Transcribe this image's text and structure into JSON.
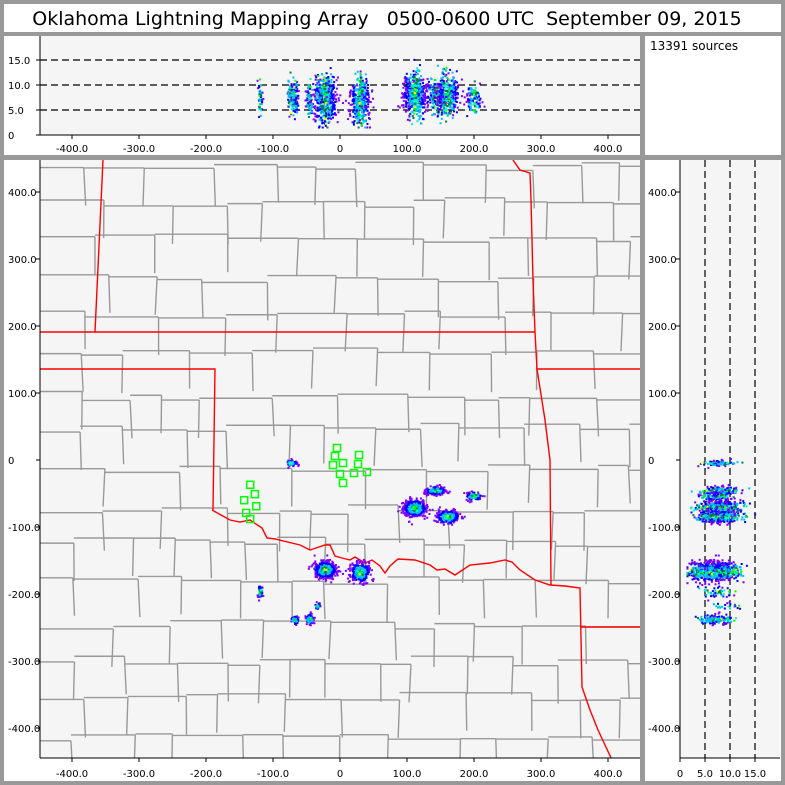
{
  "title": "Oklahoma Lightning Mapping Array   0500-0600 UTC  September 09, 2015",
  "sources_label": "13391 sources",
  "colors": {
    "background": "#999999",
    "plot_bg": "#f5f5f5",
    "state_border": "#ff0000",
    "county_border": "#999999",
    "station": "#00ff00",
    "density_scale": [
      "#8000ff",
      "#0000ff",
      "#00c0ff",
      "#00ffc0",
      "#00ff00",
      "#008040",
      "#ffff00",
      "#ff0000"
    ]
  },
  "chart_data": [
    {
      "panel": "altitude-vs-east-west",
      "type": "scatter",
      "xlim": [
        -450,
        450
      ],
      "ylim": [
        0,
        20
      ],
      "x_ticks": [
        "-400.0",
        "-300.0",
        "-200.0",
        "-100.0",
        "0",
        "100.0",
        "200.0",
        "300.0",
        "400.0"
      ],
      "x_tick_values": [
        -400,
        -300,
        -200,
        -100,
        0,
        100,
        200,
        300,
        400
      ],
      "y_ticks": [
        "0",
        "5.0",
        "10.0",
        "15.0"
      ],
      "y_tick_values": [
        0,
        5,
        10,
        15
      ],
      "dashed_gridlines_y": [
        5,
        10,
        15
      ]
    },
    {
      "panel": "plan-view-map",
      "type": "scatter",
      "xlim": [
        -450,
        450
      ],
      "ylim": [
        -445,
        448
      ],
      "x_ticks": [
        "-400.0",
        "-300.0",
        "-200.0",
        "-100.0",
        "0",
        "100.0",
        "200.0",
        "300.0",
        "400.0"
      ],
      "x_tick_values": [
        -400,
        -300,
        -200,
        -100,
        0,
        100,
        200,
        300,
        400
      ],
      "y_ticks": [
        "400.0",
        "300.0",
        "200.0",
        "100.0",
        "0",
        "-100.0",
        "-200.0",
        "-300.0",
        "-400.0"
      ],
      "y_tick_values": [
        400,
        300,
        200,
        100,
        0,
        -100,
        -200,
        -300,
        -400
      ],
      "stations": [
        [
          -4.5,
          17.9
        ],
        [
          -7.5,
          6
        ],
        [
          -10.4,
          -7.5
        ],
        [
          4.5,
          -4.5
        ],
        [
          0,
          -20.9
        ],
        [
          4.5,
          -34.3
        ],
        [
          28.4,
          7.5
        ],
        [
          26.9,
          -6
        ],
        [
          20.9,
          -19.4
        ],
        [
          40.3,
          -17.9
        ],
        [
          -134,
          -37
        ],
        [
          -127,
          -51
        ],
        [
          -143,
          -60
        ],
        [
          -125,
          -69
        ],
        [
          -140,
          -79
        ],
        [
          -134,
          -88
        ]
      ],
      "source_clusters": [
        {
          "x": -73,
          "y": -5,
          "sx": 4,
          "sy": 2,
          "alt": 8,
          "salt": 1.5,
          "n": 80
        },
        {
          "x": 112,
          "y": -72,
          "sx": 8,
          "sy": 6,
          "alt": 8,
          "salt": 2,
          "n": 500
        },
        {
          "x": 143,
          "y": -46,
          "sx": 7,
          "sy": 3,
          "alt": 8,
          "salt": 1.8,
          "n": 200
        },
        {
          "x": 161,
          "y": -85,
          "sx": 8,
          "sy": 5,
          "alt": 8,
          "salt": 2,
          "n": 300
        },
        {
          "x": 200,
          "y": -54,
          "sx": 6,
          "sy": 3,
          "alt": 7,
          "salt": 1.5,
          "n": 100
        },
        {
          "x": -22,
          "y": -164,
          "sx": 8,
          "sy": 6,
          "alt": 7,
          "salt": 2.2,
          "n": 500
        },
        {
          "x": 30,
          "y": -168,
          "sx": 7,
          "sy": 7,
          "alt": 6.5,
          "salt": 2.2,
          "n": 400
        },
        {
          "x": -119,
          "y": -197,
          "sx": 2,
          "sy": 5,
          "alt": 7,
          "salt": 1.5,
          "n": 50
        },
        {
          "x": -67,
          "y": -239,
          "sx": 3,
          "sy": 3,
          "alt": 7,
          "salt": 1.5,
          "n": 60
        },
        {
          "x": -45,
          "y": -238,
          "sx": 3,
          "sy": 4,
          "alt": 7,
          "salt": 1.5,
          "n": 80
        },
        {
          "x": -33,
          "y": -218,
          "sx": 2,
          "sy": 3,
          "alt": 9,
          "salt": 2,
          "n": 20
        }
      ]
    },
    {
      "panel": "north-south-vs-altitude",
      "type": "scatter",
      "xlim": [
        0,
        20
      ],
      "ylim": [
        -445,
        448
      ],
      "x_ticks": [
        "0",
        "5.0",
        "10.0",
        "15.0"
      ],
      "x_tick_values": [
        0,
        5,
        10,
        15
      ],
      "y_ticks": [
        "400.0",
        "300.0",
        "200.0",
        "100.0",
        "0",
        "-100.0",
        "-200.0",
        "-300.0",
        "-400.0"
      ],
      "y_tick_values": [
        400,
        300,
        200,
        100,
        0,
        -100,
        -200,
        -300,
        -400
      ],
      "dashed_gridlines_x": [
        5,
        10,
        15
      ]
    }
  ]
}
